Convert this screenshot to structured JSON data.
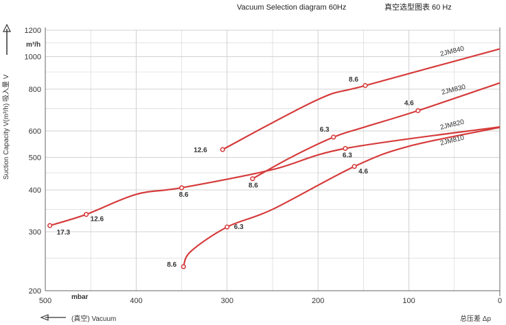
{
  "header": {
    "title_en": "Vacuum Selection diagram 60Hz",
    "title_cn": "真空选型图表 60 Hz"
  },
  "colors": {
    "curve": "#d63a3a",
    "grid": "#d0d0d0",
    "axis": "#666666"
  },
  "chart_data": {
    "type": "line",
    "xscale": "linear-reversed",
    "yscale": "log",
    "xlim": [
      500,
      0
    ],
    "ylim": [
      200,
      1200
    ],
    "x_ticks": [
      "500",
      "400",
      "300",
      "200",
      "100",
      "0"
    ],
    "y_ticks": [
      {
        "value": 200,
        "label": "200"
      },
      {
        "value": 300,
        "label": "300"
      },
      {
        "value": 400,
        "label": "400"
      },
      {
        "value": 500,
        "label": "500"
      },
      {
        "value": 600,
        "label": "600"
      },
      {
        "value": 800,
        "label": "800"
      },
      {
        "value": 1000,
        "label": "1000"
      },
      {
        "value": 1200,
        "label": "1200"
      }
    ],
    "ylabel": "Suction Capacity V(m³/h)  吸入量 V",
    "y_unit": "m³/h",
    "x_unit": "mbar",
    "xlabel_left": "(真空)  Vacuum",
    "xlabel_right": "总压差 Δp",
    "grid": true,
    "series": [
      {
        "name": "2JM840",
        "points": [
          [
            305,
            528
          ],
          [
            200,
            745
          ],
          [
            148,
            820
          ],
          [
            0,
            1055
          ]
        ],
        "markers": [
          {
            "x": 305,
            "y": 528,
            "label": "12.6"
          },
          {
            "x": 148,
            "y": 820,
            "label": "8.6"
          }
        ]
      },
      {
        "name": "2JM830",
        "points": [
          [
            272,
            432
          ],
          [
            230,
            500
          ],
          [
            183,
            575
          ],
          [
            150,
            615
          ],
          [
            90,
            690
          ],
          [
            0,
            835
          ]
        ],
        "markers": [
          {
            "x": 272,
            "y": 432,
            "label": "8.6"
          },
          {
            "x": 183,
            "y": 575,
            "label": "6.3"
          },
          {
            "x": 90,
            "y": 690,
            "label": "4.6"
          }
        ]
      },
      {
        "name": "2JM820",
        "points": [
          [
            495,
            313
          ],
          [
            455,
            338
          ],
          [
            400,
            388
          ],
          [
            350,
            406
          ],
          [
            250,
            460
          ],
          [
            170,
            532
          ],
          [
            0,
            617
          ]
        ],
        "markers": [
          {
            "x": 495,
            "y": 313,
            "label": "17.3"
          },
          {
            "x": 455,
            "y": 338,
            "label": "12.6"
          },
          {
            "x": 350,
            "y": 406,
            "label": "8.6"
          },
          {
            "x": 170,
            "y": 532,
            "label": "6.3"
          }
        ]
      },
      {
        "name": "2JM810",
        "points": [
          [
            348,
            236
          ],
          [
            340,
            262
          ],
          [
            300,
            310
          ],
          [
            250,
            350
          ],
          [
            160,
            470
          ],
          [
            100,
            540
          ],
          [
            0,
            615
          ]
        ],
        "markers": [
          {
            "x": 348,
            "y": 236,
            "label": "8.6"
          },
          {
            "x": 300,
            "y": 310,
            "label": "6.3"
          },
          {
            "x": 160,
            "y": 470,
            "label": "4.6"
          }
        ]
      }
    ]
  }
}
